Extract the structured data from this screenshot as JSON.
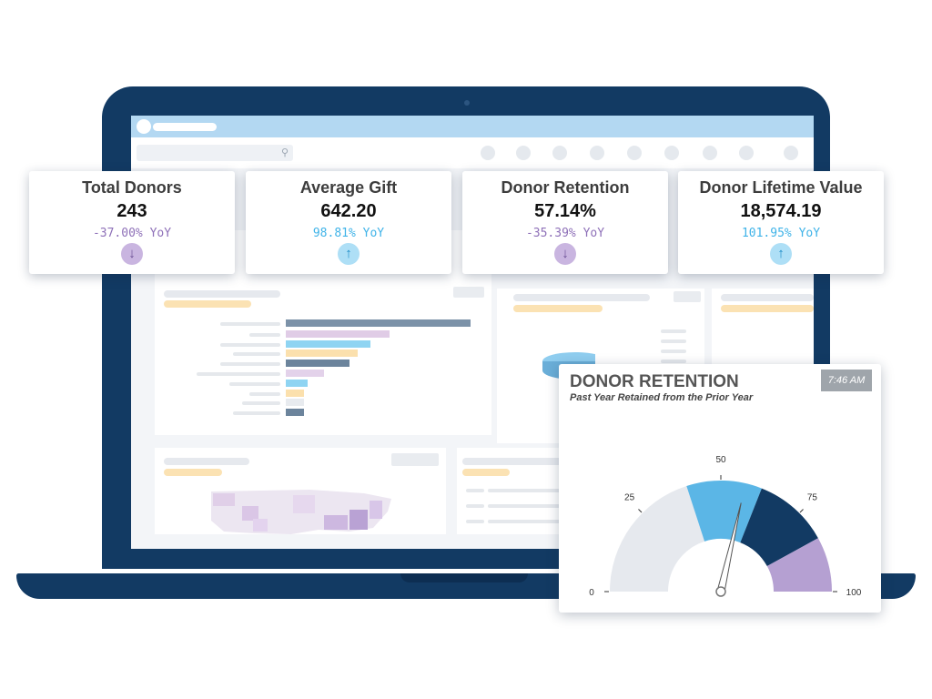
{
  "kpis": [
    {
      "title": "Total Donors",
      "value": "243",
      "delta": "-37.00% YoY",
      "trend": "down",
      "trend_icon": "arrow-down-icon"
    },
    {
      "title": "Average Gift",
      "value": "642.20",
      "delta": "98.81% YoY",
      "trend": "up",
      "trend_icon": "arrow-up-icon"
    },
    {
      "title": "Donor Retention",
      "value": "57.14%",
      "delta": "-35.39% YoY",
      "trend": "down",
      "trend_icon": "arrow-down-icon"
    },
    {
      "title": "Donor Lifetime Value",
      "value": "18,574.19",
      "delta": "101.95% YoY",
      "trend": "up",
      "trend_icon": "arrow-up-icon"
    }
  ],
  "gauge": {
    "title": "DONOR RETENTION",
    "subtitle": "Past Year Retained from the Prior Year",
    "time": "7:46 AM",
    "min": 0,
    "max": 100,
    "ticks": [
      "0",
      "25",
      "50",
      "75",
      "100"
    ],
    "value": 57.14,
    "bands": [
      {
        "from": 0,
        "to": 40,
        "color": "#e6e9ee"
      },
      {
        "from": 40,
        "to": 62,
        "color": "#5bb6e6"
      },
      {
        "from": 62,
        "to": 84,
        "color": "#123a63"
      },
      {
        "from": 84,
        "to": 100,
        "color": "#b5a0d2"
      }
    ]
  },
  "colors": {
    "laptop": "#123a63",
    "browser_bar": "#b3d8f2",
    "down": "#8e70b8",
    "up": "#3fb3e8"
  }
}
